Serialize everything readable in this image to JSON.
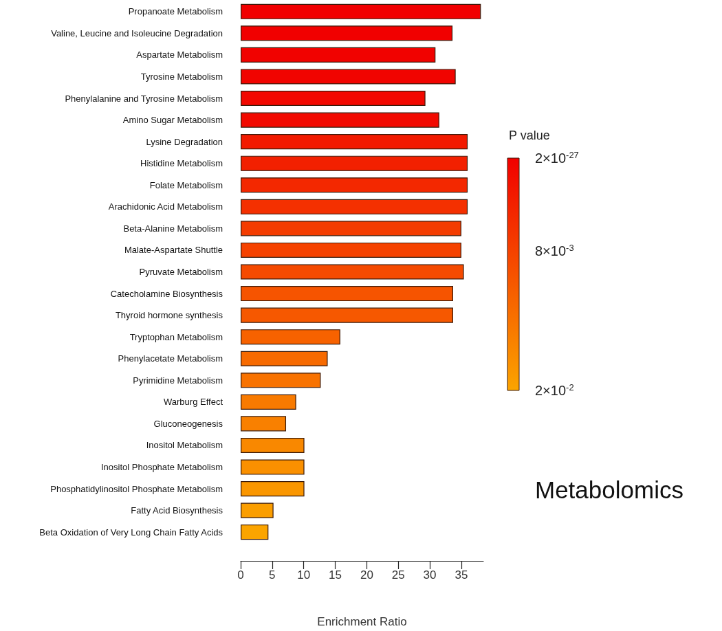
{
  "chart_data": {
    "type": "bar",
    "orientation": "horizontal",
    "xlabel": "Enrichment Ratio",
    "clabel": "P value",
    "categories": [
      "Propanoate Metabolism",
      "Valine, Leucine and Isoleucine Degradation",
      "Aspartate Metabolism",
      "Tyrosine Metabolism",
      "Phenylalanine and Tyrosine Metabolism",
      "Amino Sugar Metabolism",
      "Lysine Degradation",
      "Histidine Metabolism",
      "Folate Metabolism",
      "Arachidonic Acid Metabolism",
      "Beta-Alanine Metabolism",
      "Malate-Aspartate Shuttle",
      "Pyruvate Metabolism",
      "Catecholamine Biosynthesis",
      "Thyroid hormone synthesis",
      "Tryptophan Metabolism",
      "Phenylacetate Metabolism",
      "Pyrimidine Metabolism",
      "Warburg Effect",
      "Gluconeogenesis",
      "Inositol Metabolism",
      "Inositol Phosphate Metabolism",
      "Phosphatidylinositol Phosphate Metabolism",
      "Fatty Acid Biosynthesis",
      "Beta Oxidation of Very Long Chain Fatty Acids"
    ],
    "values": [
      38.1,
      33.6,
      30.9,
      34.1,
      29.3,
      31.5,
      36.0,
      36.0,
      36.0,
      36.0,
      35.0,
      35.0,
      35.4,
      33.7,
      33.7,
      15.8,
      13.8,
      12.7,
      8.8,
      7.2,
      10.1,
      10.1,
      10.1,
      5.2,
      4.4
    ],
    "colors": [
      "#f10000",
      "#f10000",
      "#f10200",
      "#f10400",
      "#f20800",
      "#f20a00",
      "#f21a00",
      "#f22000",
      "#f32800",
      "#f43000",
      "#f43c00",
      "#f54200",
      "#f54a00",
      "#f65400",
      "#f65800",
      "#f76200",
      "#f76a00",
      "#f87200",
      "#f87a00",
      "#f98000",
      "#f98800",
      "#fa9000",
      "#fa9600",
      "#fb9e00",
      "#fba400"
    ],
    "xlim": [
      0,
      38.5
    ],
    "xticks": [
      0,
      5,
      10,
      15,
      20,
      25,
      30,
      35
    ],
    "clim": [
      2e-27,
      0.02
    ],
    "cticks": [
      {
        "value": 2e-27,
        "label": "2×10$^{-27}$"
      },
      {
        "value": 0.008,
        "label": "8×10$^{-3}$"
      },
      {
        "value": 0.02,
        "label": "2×10$^{-2}$"
      }
    ],
    "annotations": [
      "Metabolomics"
    ]
  }
}
